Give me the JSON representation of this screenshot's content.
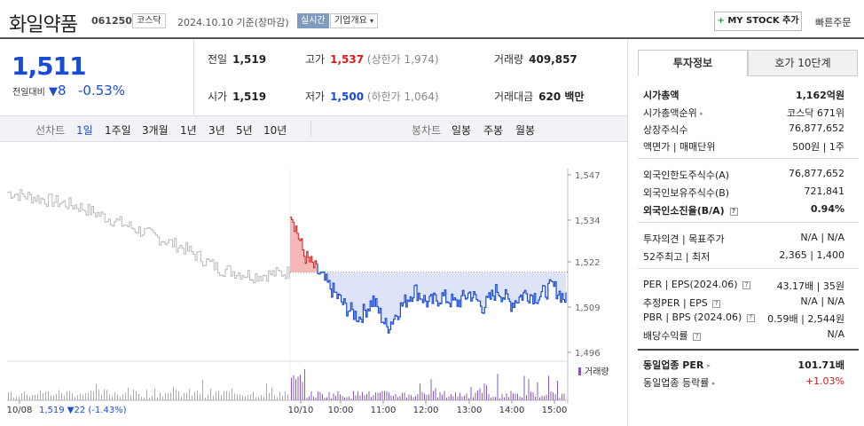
{
  "header": {
    "title": "화일약품",
    "code": "061250",
    "market": "코스닥",
    "date": "2024.10.10 기준(장마감)",
    "realtime": "실시간",
    "corp_info": "기업개요",
    "mystock_label": "MY STOCK 추가",
    "quick_order": "빠른주문"
  },
  "price": {
    "current": "1,511",
    "change_label": "전일대비",
    "change_value": "8",
    "change_pct": "-0.53%"
  },
  "stats": {
    "prev_label": "전일",
    "prev": "1,519",
    "open_label": "시가",
    "open": "1,519",
    "high_label": "고가",
    "high": "1,537",
    "upper_limit": "(상한가 1,974)",
    "low_label": "저가",
    "low": "1,500",
    "lower_limit": "(하한가 1,064)",
    "volume_label": "거래량",
    "volume": "409,857",
    "amount_label": "거래대금",
    "amount": "620 백만"
  },
  "periods": {
    "line_label": "선차트",
    "items": [
      "1일",
      "1주일",
      "3개월",
      "1년",
      "3년",
      "5년",
      "10년"
    ],
    "active": "1일",
    "candle_label": "봉차트",
    "candle_items": [
      "일봉",
      "주봉",
      "월봉"
    ]
  },
  "chart_data": {
    "type": "line",
    "y_ticks": [
      "1,547",
      "1,534",
      "1,522",
      "1,509",
      "1,496"
    ],
    "ylim": [
      1496,
      1547
    ],
    "base_price": 1519,
    "x_ticks": [
      "10/08",
      "10/10",
      "10:00",
      "11:00",
      "12:00",
      "13:00",
      "14:00",
      "15:00"
    ],
    "volume_label": "거래량",
    "prev_summary": "1,519 ▼22 (-1.43%)",
    "series": [
      {
        "x": [
          "10/08",
          "10/08",
          "10/08",
          "10/08",
          "10/08",
          "10/08",
          "10/08",
          "10/09",
          "10/09"
        ],
        "values": [
          1542,
          1540,
          1538,
          1534,
          1530,
          1526,
          1520,
          1518,
          1519
        ]
      },
      {
        "x": [
          "09:00",
          "09:05",
          "09:10",
          "09:20",
          "09:30",
          "09:40",
          "09:50",
          "10:00",
          "10:10",
          "10:20",
          "10:40",
          "11:00",
          "11:30",
          "12:00",
          "12:30",
          "13:00",
          "13:30",
          "14:00",
          "14:30",
          "15:00",
          "15:30"
        ],
        "values": [
          1537,
          1524,
          1519,
          1514,
          1509,
          1506,
          1511,
          1503,
          1509,
          1514,
          1510,
          1512,
          1510,
          1513,
          1509,
          1514,
          1510,
          1513,
          1512,
          1515,
          1511
        ]
      }
    ]
  },
  "side": {
    "tab_invest": "투자정보",
    "tab_hoga": "호가 10단계",
    "rows": [
      {
        "label": "시가총액",
        "value": "1,162억원"
      },
      {
        "label": "시가총액순위",
        "value": "코스닥 671위"
      },
      {
        "label": "상장주식수",
        "value": "76,877,652"
      },
      {
        "label": "액면가 | 매매단위",
        "value": "500원 | 1주"
      },
      {
        "label": "외국인한도주식수(A)",
        "value": "76,877,652"
      },
      {
        "label": "외국인보유주식수(B)",
        "value": "721,841"
      },
      {
        "label": "외국인소진율(B/A)",
        "value": "0.94%"
      },
      {
        "label": "투자의견 | 목표주가",
        "value": "N/A | N/A"
      },
      {
        "label": "52주최고 | 최저",
        "value": "2,365 | 1,400"
      },
      {
        "label": "PER | EPS(2024.06)",
        "value": "43.17배 | 35원"
      },
      {
        "label": "추정PER | EPS",
        "value": "N/A | N/A"
      },
      {
        "label": "PBR | BPS (2024.06)",
        "value": "0.59배 | 2,544원"
      },
      {
        "label": "배당수익률",
        "value": "N/A"
      },
      {
        "label": "동일업종 PER",
        "value": "101.71배"
      },
      {
        "label": "동일업종 등락률",
        "value": "+1.03%"
      }
    ]
  },
  "colors": {
    "down": "#1a4bd6",
    "up": "#d91a1a",
    "volume": "#8a57c4",
    "fill_down": "#dde4f8",
    "fill_up": "#f5b8b8"
  }
}
